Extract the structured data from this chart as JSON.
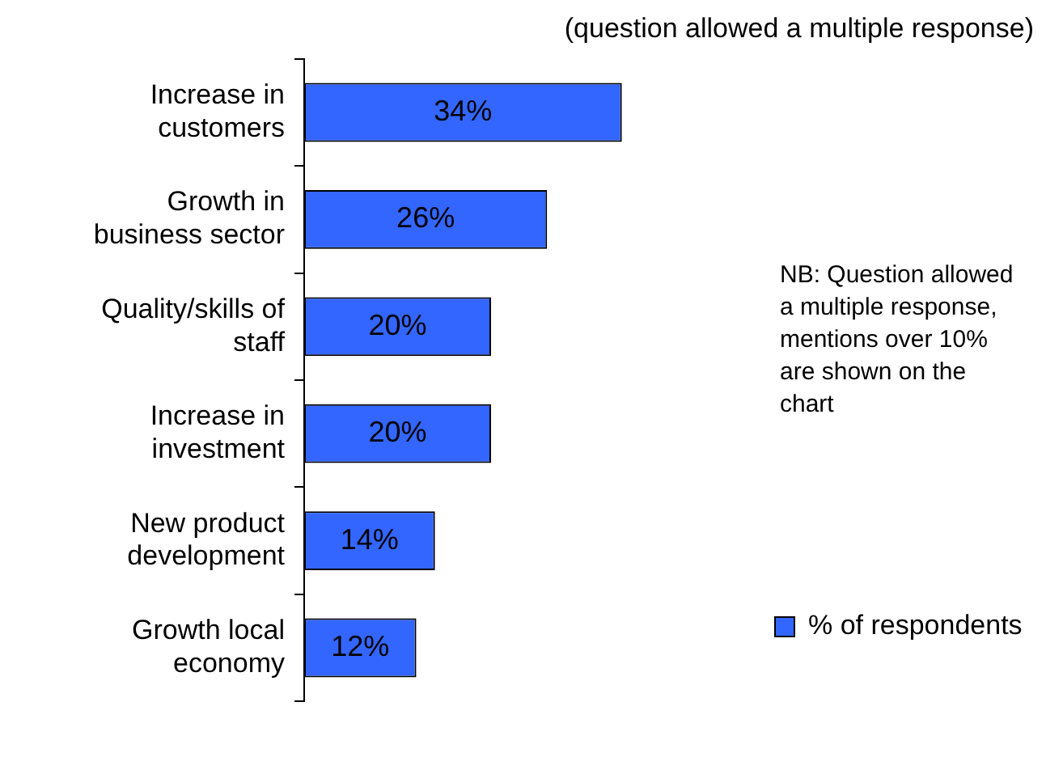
{
  "chart_data": {
    "type": "bar",
    "orientation": "horizontal",
    "subtitle": "(question allowed a multiple response)",
    "categories": [
      "Increase in customers",
      "Growth in business sector",
      "Quality/skills of staff",
      "Increase in investment",
      "New product development",
      "Growth local economy"
    ],
    "series": [
      {
        "name": "% of respondents",
        "color": "#3366ff",
        "values": [
          34,
          26,
          20,
          20,
          14,
          12
        ],
        "value_labels": [
          "34%",
          "26%",
          "20%",
          "20%",
          "14%",
          "12%"
        ]
      }
    ],
    "annotations": [
      "NB: Question allowed a multiple response, mentions over 10% are shown on the chart"
    ],
    "legend": "right",
    "grid": false
  }
}
